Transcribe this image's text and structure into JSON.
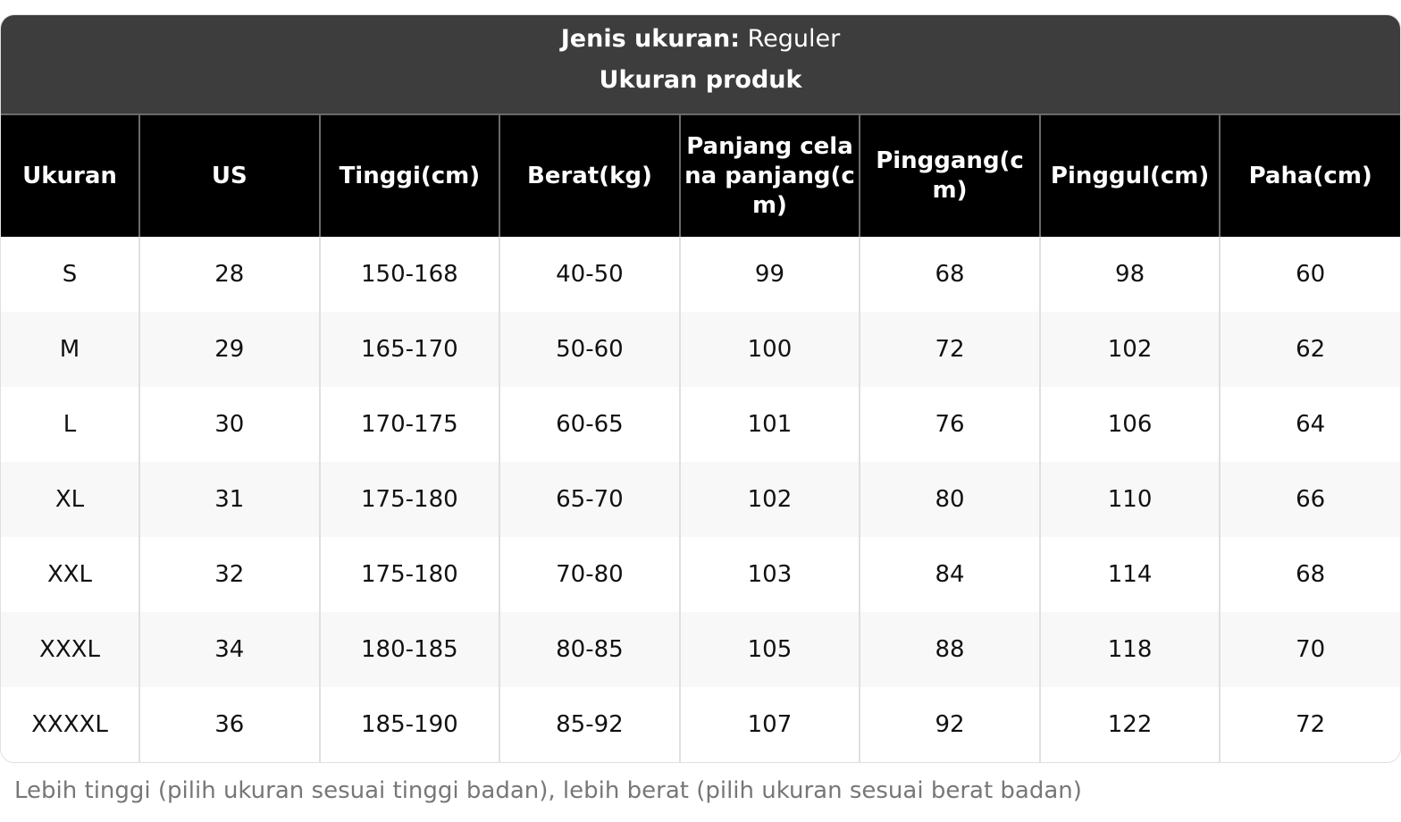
{
  "title": {
    "label": "Jenis ukuran:",
    "value": "Reguler",
    "subtitle": "Ukuran produk"
  },
  "columns": [
    "Ukuran",
    "US",
    "Tinggi(cm)",
    "Berat(kg)",
    "Panjang celana panjang(cm)",
    "Pinggang(cm)",
    "Pinggul(cm)",
    "Paha(cm)"
  ],
  "rows": [
    [
      "S",
      "28",
      "150-168",
      "40-50",
      "99",
      "68",
      "98",
      "60"
    ],
    [
      "M",
      "29",
      "165-170",
      "50-60",
      "100",
      "72",
      "102",
      "62"
    ],
    [
      "L",
      "30",
      "170-175",
      "60-65",
      "101",
      "76",
      "106",
      "64"
    ],
    [
      "XL",
      "31",
      "175-180",
      "65-70",
      "102",
      "80",
      "110",
      "66"
    ],
    [
      "XXL",
      "32",
      "175-180",
      "70-80",
      "103",
      "84",
      "114",
      "68"
    ],
    [
      "XXXL",
      "34",
      "180-185",
      "80-85",
      "105",
      "88",
      "118",
      "70"
    ],
    [
      "XXXXL",
      "36",
      "185-190",
      "85-92",
      "107",
      "92",
      "122",
      "72"
    ]
  ],
  "note": "Lebih tinggi (pilih ukuran sesuai tinggi badan), lebih berat (pilih ukuran sesuai berat badan)"
}
